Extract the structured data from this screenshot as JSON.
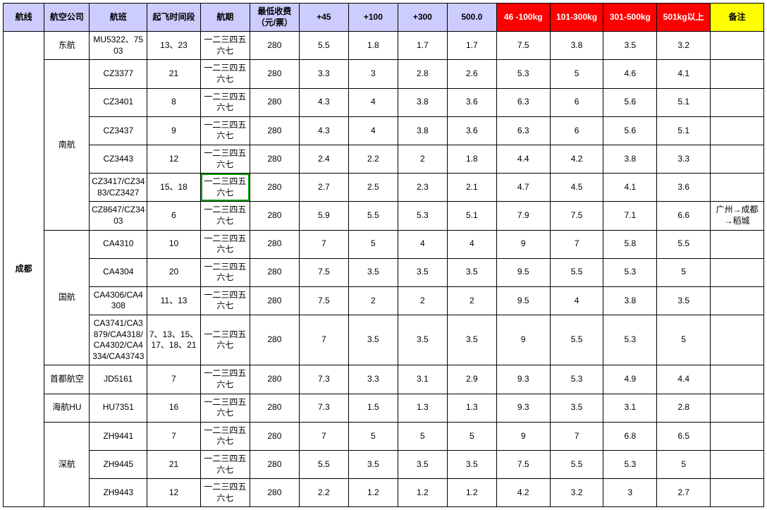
{
  "colors": {
    "header_lavender": "#ccccff",
    "header_red": "#ff0000",
    "header_yellow": "#ffff00",
    "border": "#000000",
    "highlight_border": "#00a000",
    "text_white": "#ffffff",
    "text_black": "#000000"
  },
  "headers": {
    "route": "航线",
    "airline": "航空公司",
    "flight": "航班",
    "dep_time": "起飞时间段",
    "schedule": "航期",
    "min_fee": "最低收费（元/票）",
    "p45": "+45",
    "p100": "+100",
    "p300": "+300",
    "p500": "500.0",
    "r1": "46 -100kg",
    "r2": "101-300kg",
    "r3": "301-500kg",
    "r4": "501kg以上",
    "note": "备注"
  },
  "route": "成都",
  "sched_default": "一二三四五六七",
  "groups": [
    {
      "airline": "东航",
      "rows": [
        {
          "flight": "MU5322、7503",
          "dep": "13、23",
          "min": "280",
          "c": [
            "5.5",
            "1.8",
            "1.7",
            "1.7",
            "7.5",
            "3.8",
            "3.5",
            "3.2"
          ],
          "note": ""
        }
      ]
    },
    {
      "airline": "南航",
      "rows": [
        {
          "flight": "CZ3377",
          "dep": "21",
          "min": "280",
          "c": [
            "3.3",
            "3",
            "2.8",
            "2.6",
            "5.3",
            "5",
            "4.6",
            "4.1"
          ],
          "note": ""
        },
        {
          "flight": "CZ3401",
          "dep": "8",
          "min": "280",
          "c": [
            "4.3",
            "4",
            "3.8",
            "3.6",
            "6.3",
            "6",
            "5.6",
            "5.1"
          ],
          "note": ""
        },
        {
          "flight": "CZ3437",
          "dep": "9",
          "min": "280",
          "c": [
            "4.3",
            "4",
            "3.8",
            "3.6",
            "6.3",
            "6",
            "5.6",
            "5.1"
          ],
          "note": ""
        },
        {
          "flight": "CZ3443",
          "dep": "12",
          "min": "280",
          "c": [
            "2.4",
            "2.2",
            "2",
            "1.8",
            "4.4",
            "4.2",
            "3.8",
            "3.3"
          ],
          "note": ""
        },
        {
          "flight": "CZ3417/CZ3483/CZ3427",
          "dep": "15、18",
          "min": "280",
          "c": [
            "2.7",
            "2.5",
            "2.3",
            "2.1",
            "4.7",
            "4.5",
            "4.1",
            "3.6"
          ],
          "note": "",
          "hl_sched": true
        },
        {
          "flight": "CZ8647/CZ3403",
          "dep": "6",
          "min": "280",
          "c": [
            "5.9",
            "5.5",
            "5.3",
            "5.1",
            "7.9",
            "7.5",
            "7.1",
            "6.6"
          ],
          "note": "广州→成都→稻城"
        }
      ]
    },
    {
      "airline": "国航",
      "rows": [
        {
          "flight": "CA4310",
          "dep": "10",
          "min": "280",
          "c": [
            "7",
            "5",
            "4",
            "4",
            "9",
            "7",
            "5.8",
            "5.5"
          ],
          "note": ""
        },
        {
          "flight": "CA4304",
          "dep": "20",
          "min": "280",
          "c": [
            "7.5",
            "3.5",
            "3.5",
            "3.5",
            "9.5",
            "5.5",
            "5.3",
            "5"
          ],
          "note": ""
        },
        {
          "flight": "CA4306/CA4308",
          "dep": "11、13",
          "min": "280",
          "c": [
            "7.5",
            "2",
            "2",
            "2",
            "9.5",
            "4",
            "3.8",
            "3.5"
          ],
          "note": ""
        },
        {
          "flight": "CA3741/CA3879/CA4318/CA4302/CA4334/CA43743",
          "dep": "7、13、15、17、18、21",
          "min": "280",
          "c": [
            "7",
            "3.5",
            "3.5",
            "3.5",
            "9",
            "5.5",
            "5.3",
            "5"
          ],
          "note": ""
        }
      ]
    },
    {
      "airline": "首都航空",
      "rows": [
        {
          "flight": "JD5161",
          "dep": "7",
          "min": "280",
          "c": [
            "7.3",
            "3.3",
            "3.1",
            "2.9",
            "9.3",
            "5.3",
            "4.9",
            "4.4"
          ],
          "note": ""
        }
      ]
    },
    {
      "airline": "海航HU",
      "rows": [
        {
          "flight": "HU7351",
          "dep": "16",
          "min": "280",
          "c": [
            "7.3",
            "1.5",
            "1.3",
            "1.3",
            "9.3",
            "3.5",
            "3.1",
            "2.8"
          ],
          "note": ""
        }
      ]
    },
    {
      "airline": "深航",
      "rows": [
        {
          "flight": "ZH9441",
          "dep": "7",
          "min": "280",
          "c": [
            "7",
            "5",
            "5",
            "5",
            "9",
            "7",
            "6.8",
            "6.5"
          ],
          "note": ""
        },
        {
          "flight": "ZH9445",
          "dep": "21",
          "min": "280",
          "c": [
            "5.5",
            "3.5",
            "3.5",
            "3.5",
            "7.5",
            "5.5",
            "5.3",
            "5"
          ],
          "note": ""
        },
        {
          "flight": "ZH9443",
          "dep": "12",
          "min": "280",
          "c": [
            "2.2",
            "1.2",
            "1.2",
            "1.2",
            "4.2",
            "3.2",
            "3",
            "2.7"
          ],
          "note": ""
        }
      ]
    }
  ]
}
